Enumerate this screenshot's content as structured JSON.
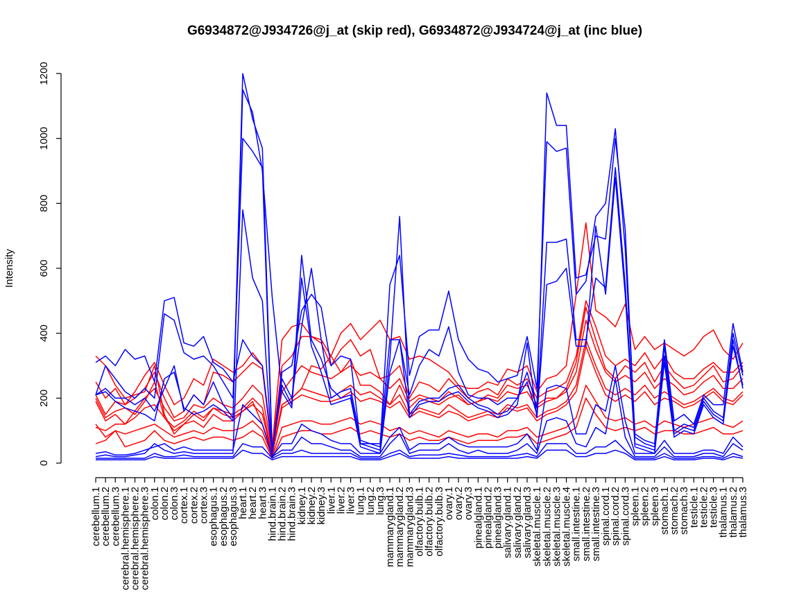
{
  "chart_data": {
    "type": "line",
    "title": "G6934872@J934726@j_at (skip red), G6934872@J934724@j_at (inc blue)",
    "xlabel": "",
    "ylabel": "Intensity",
    "ylim": [
      0,
      1200
    ],
    "yticks": [
      0,
      200,
      400,
      600,
      800,
      1000,
      1200
    ],
    "grid": false,
    "legend": "none",
    "colors": {
      "skip": "#ff0000",
      "inc": "#0000ff"
    },
    "categories": [
      "cerebellum.1",
      "cerebellum.2",
      "cerebellum.3",
      "cerebral.hemisphere.1",
      "cerebral.hemisphere.2",
      "cerebral.hemisphere.3",
      "colon.1",
      "colon.2",
      "colon.3",
      "cortex.1",
      "cortex.2",
      "cortex.3",
      "esophagus.1",
      "esophagus.2",
      "esophagus.3",
      "heart.1",
      "heart.2",
      "heart.3",
      "hind.brain.1",
      "hind.brain.2",
      "hind.brain.3",
      "kidney.1",
      "kidney.2",
      "kidney.3",
      "liver.1",
      "liver.2",
      "liver.3",
      "lung.1",
      "lung.2",
      "lung.3",
      "mammarygland.1",
      "mammarygland.2",
      "mammarygland.3",
      "olfactory.bulb.1",
      "olfactory.bulb.2",
      "olfactory.bulb.3",
      "ovary.1",
      "ovary.2",
      "ovary.3",
      "pinealgland.1",
      "pinealgland.2",
      "pinealgland.3",
      "salivary.gland.1",
      "salivary.gland.2",
      "salivary.gland.3",
      "skeletal.muscle.1",
      "skeletal.muscle.2",
      "skeletal.muscle.3",
      "skeletal.muscle.4",
      "small.intestine.1",
      "small.intestine.2",
      "small.intestine.3",
      "spinal.cord.1",
      "spinal.cord.2",
      "spinal.cord.3",
      "spleen.1",
      "spleen.2",
      "spleen.3",
      "stomach.1",
      "stomach.2",
      "stomach.3",
      "testicle.1",
      "testicle.2",
      "testicle.3",
      "thalamus.1",
      "thalamus.2",
      "thalamus.3"
    ],
    "series": [
      {
        "group": "skip",
        "values": [
          330,
          300,
          240,
          200,
          210,
          220,
          300,
          150,
          90,
          120,
          130,
          110,
          150,
          130,
          130,
          160,
          190,
          120,
          30,
          180,
          200,
          230,
          300,
          290,
          330,
          280,
          320,
          240,
          240,
          220,
          180,
          240,
          170,
          200,
          190,
          180,
          200,
          210,
          180,
          190,
          210,
          200,
          240,
          230,
          240,
          180,
          200,
          200,
          230,
          310,
          480,
          380,
          290,
          260,
          300,
          280,
          310,
          250,
          300,
          260,
          230,
          240,
          270,
          300,
          250,
          260,
          300
        ]
      },
      {
        "group": "skip",
        "values": [
          250,
          200,
          230,
          180,
          200,
          230,
          280,
          200,
          140,
          160,
          210,
          180,
          280,
          270,
          250,
          280,
          310,
          290,
          40,
          300,
          330,
          390,
          390,
          370,
          300,
          350,
          380,
          330,
          350,
          260,
          270,
          300,
          200,
          250,
          240,
          220,
          260,
          230,
          200,
          220,
          230,
          210,
          260,
          240,
          260,
          200,
          220,
          230,
          250,
          330,
          500,
          420,
          330,
          300,
          320,
          300,
          340,
          290,
          330,
          280,
          260,
          260,
          290,
          310,
          280,
          280,
          310
        ]
      },
      {
        "group": "skip",
        "values": [
          210,
          150,
          190,
          180,
          220,
          270,
          310,
          240,
          180,
          200,
          260,
          240,
          320,
          300,
          280,
          300,
          340,
          300,
          50,
          380,
          420,
          430,
          390,
          380,
          330,
          400,
          430,
          380,
          410,
          440,
          380,
          390,
          320,
          330,
          320,
          300,
          280,
          240,
          230,
          230,
          250,
          240,
          290,
          280,
          300,
          220,
          260,
          270,
          300,
          520,
          740,
          470,
          450,
          420,
          490,
          350,
          390,
          350,
          370,
          350,
          330,
          350,
          390,
          410,
          350,
          320,
          370
        ]
      },
      {
        "group": "skip",
        "values": [
          190,
          130,
          150,
          120,
          160,
          200,
          230,
          170,
          130,
          140,
          180,
          170,
          200,
          180,
          170,
          200,
          240,
          210,
          35,
          220,
          260,
          300,
          280,
          270,
          260,
          280,
          300,
          270,
          280,
          260,
          230,
          260,
          190,
          210,
          200,
          190,
          220,
          200,
          180,
          190,
          200,
          190,
          220,
          210,
          220,
          170,
          190,
          200,
          220,
          280,
          440,
          350,
          280,
          250,
          270,
          250,
          280,
          230,
          260,
          240,
          210,
          220,
          250,
          270,
          230,
          230,
          260
        ]
      },
      {
        "group": "skip",
        "values": [
          120,
          80,
          100,
          90,
          100,
          110,
          120,
          100,
          80,
          90,
          100,
          90,
          110,
          100,
          100,
          110,
          130,
          100,
          20,
          110,
          120,
          130,
          130,
          120,
          120,
          130,
          140,
          120,
          130,
          120,
          100,
          110,
          90,
          100,
          90,
          80,
          100,
          90,
          80,
          90,
          90,
          80,
          100,
          100,
          110,
          80,
          90,
          100,
          110,
          140,
          240,
          190,
          140,
          130,
          140,
          120,
          130,
          110,
          130,
          120,
          110,
          120,
          130,
          140,
          120,
          110,
          130
        ]
      },
      {
        "group": "skip",
        "values": [
          60,
          70,
          100,
          50,
          60,
          70,
          100,
          70,
          60,
          70,
          80,
          70,
          80,
          80,
          70,
          80,
          100,
          80,
          15,
          80,
          90,
          100,
          100,
          90,
          90,
          100,
          110,
          90,
          100,
          90,
          80,
          90,
          70,
          80,
          70,
          70,
          80,
          70,
          60,
          70,
          70,
          70,
          80,
          80,
          90,
          60,
          70,
          80,
          90,
          110,
          200,
          150,
          110,
          100,
          110,
          100,
          110,
          90,
          100,
          100,
          90,
          90,
          100,
          110,
          90,
          90,
          100
        ]
      },
      {
        "group": "skip",
        "values": [
          110,
          100,
          120,
          120,
          140,
          170,
          180,
          140,
          110,
          130,
          160,
          140,
          170,
          160,
          150,
          170,
          200,
          170,
          25,
          180,
          200,
          230,
          220,
          210,
          200,
          220,
          240,
          210,
          220,
          200,
          180,
          210,
          150,
          170,
          160,
          150,
          180,
          160,
          140,
          150,
          160,
          150,
          180,
          170,
          180,
          140,
          160,
          170,
          190,
          240,
          380,
          300,
          230,
          210,
          230,
          210,
          240,
          200,
          220,
          200,
          180,
          190,
          210,
          230,
          200,
          190,
          220
        ]
      },
      {
        "group": "skip",
        "values": [
          200,
          140,
          160,
          170,
          150,
          190,
          250,
          140,
          100,
          120,
          150,
          130,
          170,
          150,
          140,
          160,
          180,
          150,
          25,
          170,
          190,
          210,
          200,
          190,
          190,
          200,
          220,
          190,
          200,
          190,
          170,
          190,
          140,
          160,
          150,
          140,
          160,
          150,
          130,
          140,
          150,
          140,
          170,
          160,
          170,
          130,
          150,
          160,
          180,
          220,
          360,
          280,
          210,
          190,
          210,
          190,
          220,
          180,
          200,
          190,
          170,
          180,
          200,
          220,
          190,
          180,
          210
        ]
      },
      {
        "group": "inc",
        "values": [
          310,
          330,
          300,
          350,
          320,
          330,
          250,
          500,
          510,
          370,
          360,
          390,
          310,
          290,
          250,
          380,
          330,
          300,
          30,
          280,
          300,
          470,
          520,
          480,
          300,
          330,
          320,
          60,
          60,
          50,
          550,
          640,
          270,
          390,
          410,
          410,
          530,
          380,
          320,
          290,
          280,
          250,
          260,
          270,
          390,
          230,
          990,
          960,
          970,
          520,
          560,
          760,
          800,
          1030,
          660,
          90,
          70,
          60,
          380,
          130,
          150,
          120,
          210,
          180,
          180,
          430,
          280
        ]
      },
      {
        "group": "inc",
        "values": [
          210,
          300,
          260,
          220,
          200,
          230,
          200,
          460,
          440,
          340,
          320,
          330,
          300,
          250,
          200,
          1000,
          960,
          910,
          30,
          260,
          200,
          420,
          600,
          380,
          200,
          220,
          230,
          70,
          60,
          60,
          380,
          380,
          210,
          300,
          350,
          330,
          420,
          280,
          210,
          200,
          200,
          180,
          200,
          200,
          280,
          170,
          1140,
          1040,
          1040,
          570,
          580,
          700,
          690,
          1000,
          720,
          80,
          60,
          50,
          360,
          100,
          120,
          110,
          200,
          160,
          140,
          400,
          270
        ]
      },
      {
        "group": "inc",
        "values": [
          210,
          230,
          200,
          200,
          180,
          200,
          160,
          230,
          300,
          160,
          210,
          180,
          250,
          180,
          140,
          1200,
          1060,
          970,
          40,
          240,
          180,
          640,
          380,
          320,
          230,
          200,
          210,
          60,
          50,
          40,
          320,
          760,
          150,
          190,
          200,
          200,
          230,
          240,
          200,
          180,
          170,
          150,
          160,
          200,
          250,
          150,
          680,
          680,
          690,
          380,
          380,
          570,
          540,
          910,
          550,
          60,
          50,
          40,
          330,
          90,
          110,
          100,
          190,
          150,
          130,
          360,
          240
        ]
      },
      {
        "group": "inc",
        "values": [
          210,
          220,
          190,
          170,
          160,
          150,
          130,
          260,
          280,
          170,
          150,
          160,
          180,
          160,
          130,
          1150,
          1080,
          900,
          510,
          220,
          170,
          570,
          360,
          280,
          180,
          190,
          200,
          50,
          40,
          30,
          280,
          380,
          140,
          180,
          190,
          190,
          210,
          220,
          190,
          170,
          160,
          140,
          150,
          180,
          370,
          140,
          550,
          560,
          600,
          360,
          360,
          730,
          520,
          880,
          520,
          50,
          40,
          30,
          310,
          80,
          100,
          90,
          180,
          140,
          120,
          380,
          230
        ]
      },
      {
        "group": "inc",
        "values": [
          20,
          25,
          20,
          20,
          25,
          30,
          60,
          40,
          30,
          35,
          30,
          30,
          30,
          30,
          30,
          780,
          570,
          500,
          20,
          40,
          40,
          80,
          60,
          60,
          50,
          40,
          40,
          20,
          20,
          20,
          60,
          90,
          30,
          40,
          40,
          40,
          60,
          40,
          30,
          40,
          30,
          30,
          30,
          40,
          60,
          30,
          130,
          140,
          130,
          60,
          50,
          110,
          90,
          260,
          80,
          20,
          20,
          20,
          50,
          20,
          20,
          20,
          30,
          30,
          20,
          60,
          40
        ]
      },
      {
        "group": "inc",
        "values": [
          10,
          10,
          10,
          10,
          10,
          10,
          20,
          15,
          15,
          15,
          15,
          15,
          15,
          15,
          15,
          40,
          30,
          30,
          10,
          20,
          20,
          20,
          20,
          20,
          20,
          20,
          20,
          10,
          10,
          10,
          20,
          30,
          15,
          15,
          15,
          15,
          20,
          15,
          15,
          15,
          15,
          15,
          15,
          15,
          20,
          15,
          40,
          40,
          40,
          20,
          20,
          30,
          30,
          40,
          30,
          10,
          10,
          10,
          20,
          10,
          10,
          10,
          15,
          15,
          10,
          20,
          15
        ]
      },
      {
        "group": "inc",
        "values": [
          30,
          35,
          25,
          25,
          30,
          40,
          50,
          60,
          40,
          50,
          40,
          40,
          40,
          40,
          40,
          180,
          150,
          120,
          20,
          60,
          60,
          120,
          100,
          90,
          70,
          60,
          60,
          30,
          30,
          30,
          80,
          110,
          40,
          60,
          60,
          60,
          80,
          60,
          50,
          50,
          50,
          50,
          50,
          60,
          90,
          40,
          230,
          240,
          230,
          90,
          90,
          180,
          160,
          300,
          130,
          30,
          30,
          30,
          70,
          30,
          30,
          30,
          40,
          40,
          30,
          80,
          50
        ]
      },
      {
        "group": "inc",
        "values": [
          15,
          15,
          15,
          15,
          15,
          15,
          30,
          20,
          20,
          25,
          20,
          20,
          20,
          20,
          20,
          60,
          50,
          50,
          15,
          30,
          30,
          40,
          30,
          30,
          30,
          30,
          30,
          15,
          15,
          15,
          30,
          40,
          20,
          25,
          25,
          25,
          30,
          25,
          20,
          20,
          20,
          20,
          20,
          25,
          30,
          20,
          60,
          60,
          60,
          30,
          30,
          50,
          50,
          70,
          40,
          15,
          15,
          15,
          30,
          15,
          15,
          15,
          20,
          20,
          15,
          30,
          20
        ]
      }
    ]
  }
}
